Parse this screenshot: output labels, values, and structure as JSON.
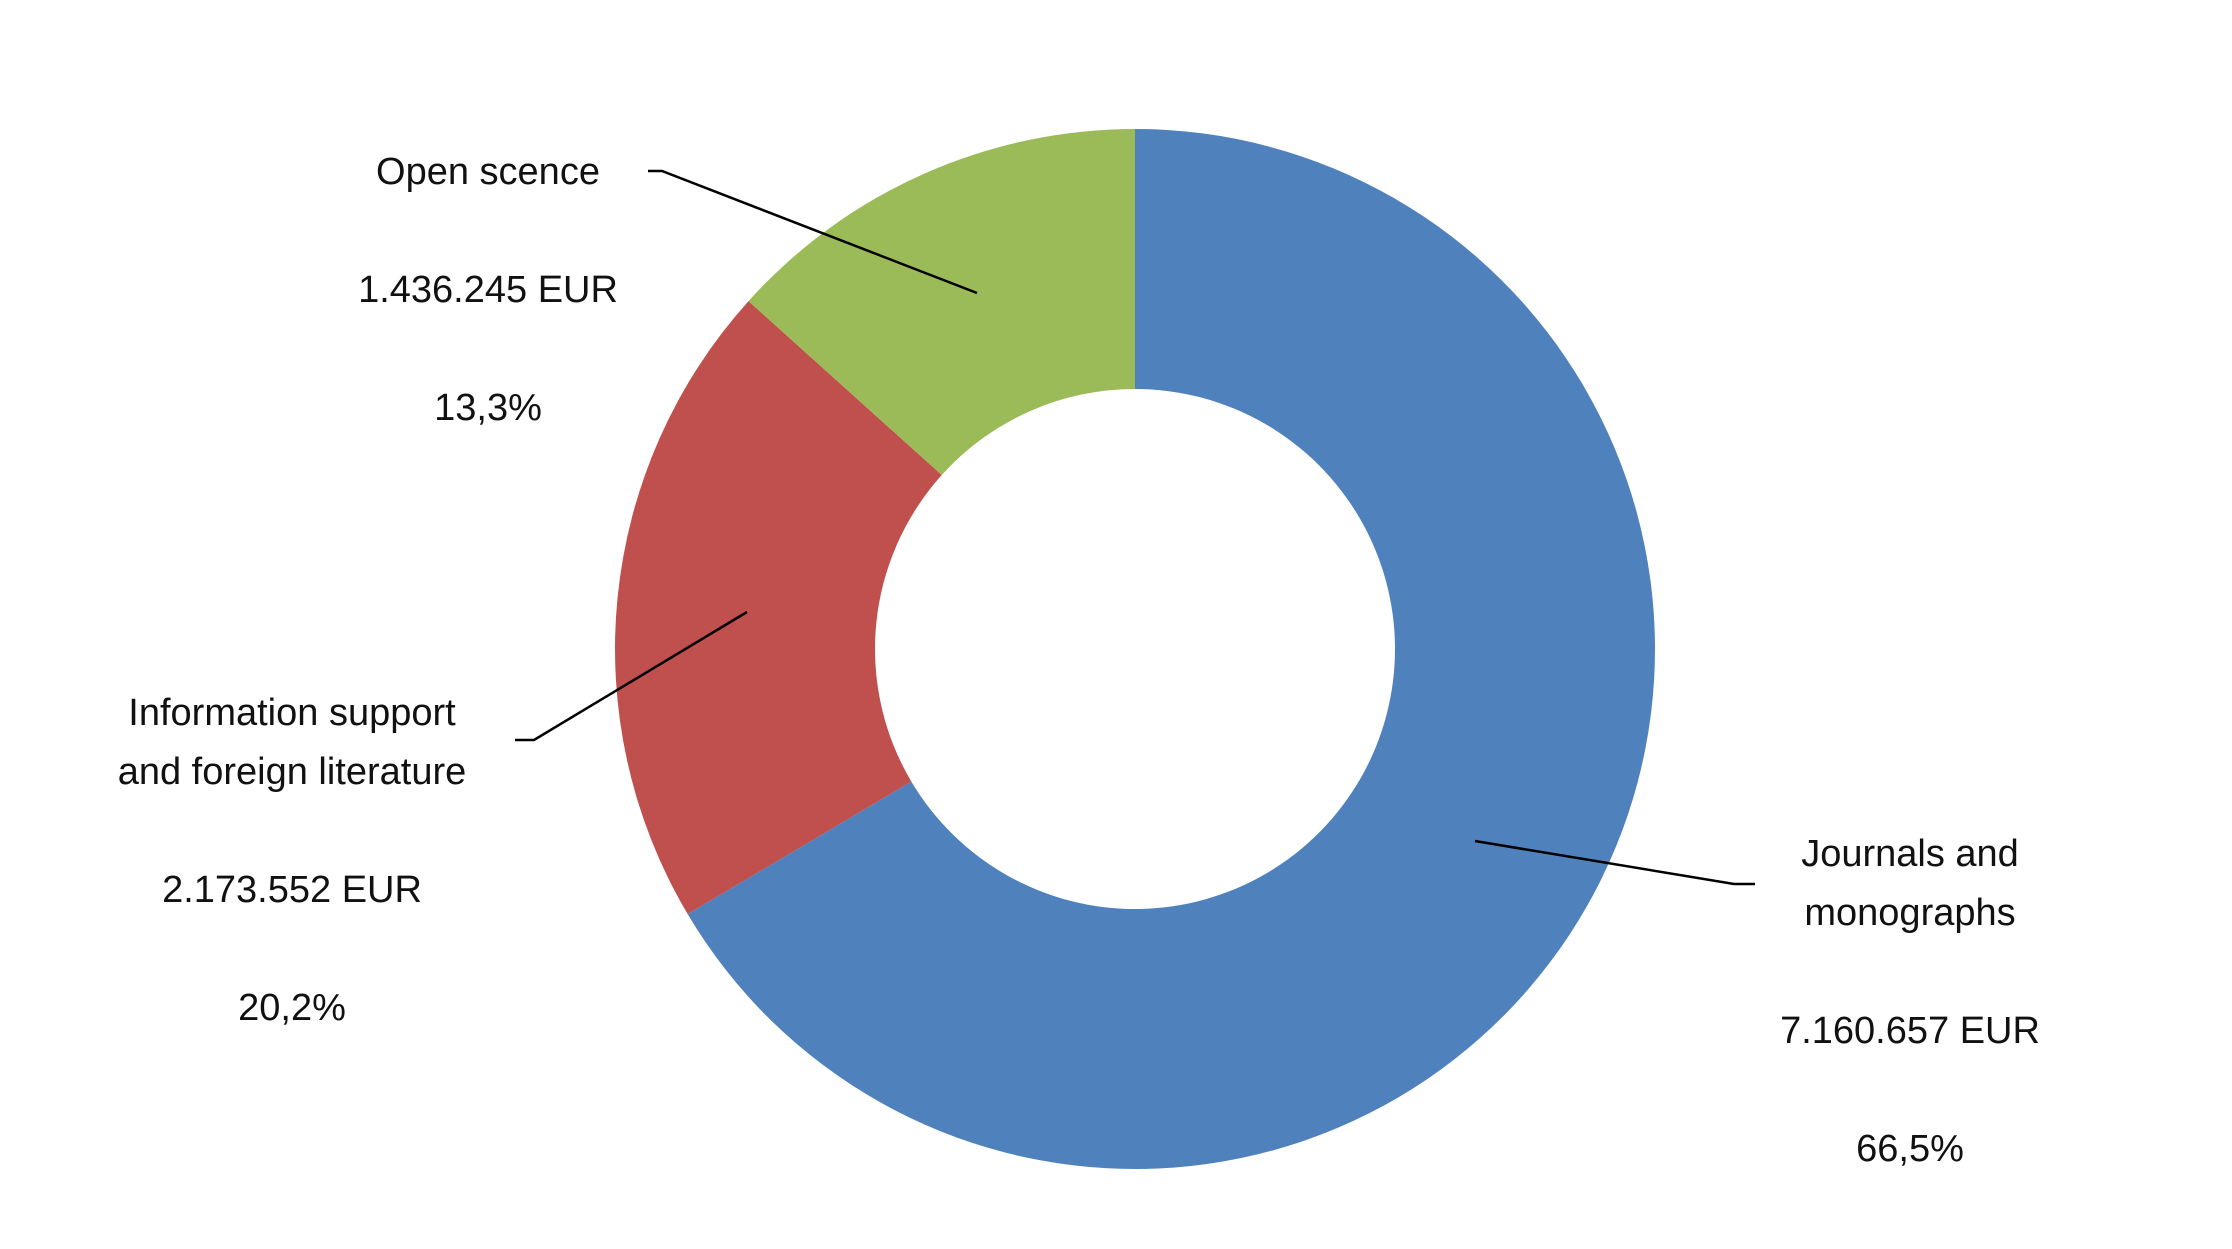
{
  "chart_data": {
    "type": "donut",
    "categories": [
      "Journals and\nmonographs",
      "Information support\nand foreign literature",
      "Open scence"
    ],
    "values": [
      7160657,
      2173552,
      1436245
    ],
    "value_labels": [
      "7.160.657 EUR",
      "2.173.552 EUR",
      "1.436.245 EUR"
    ],
    "percents": [
      66.5,
      20.2,
      13.3
    ],
    "percent_labels": [
      "66,5%",
      "20,2%",
      "13,3%"
    ],
    "colors": [
      "#4f81bd",
      "#c0504d",
      "#9bbb59"
    ]
  }
}
